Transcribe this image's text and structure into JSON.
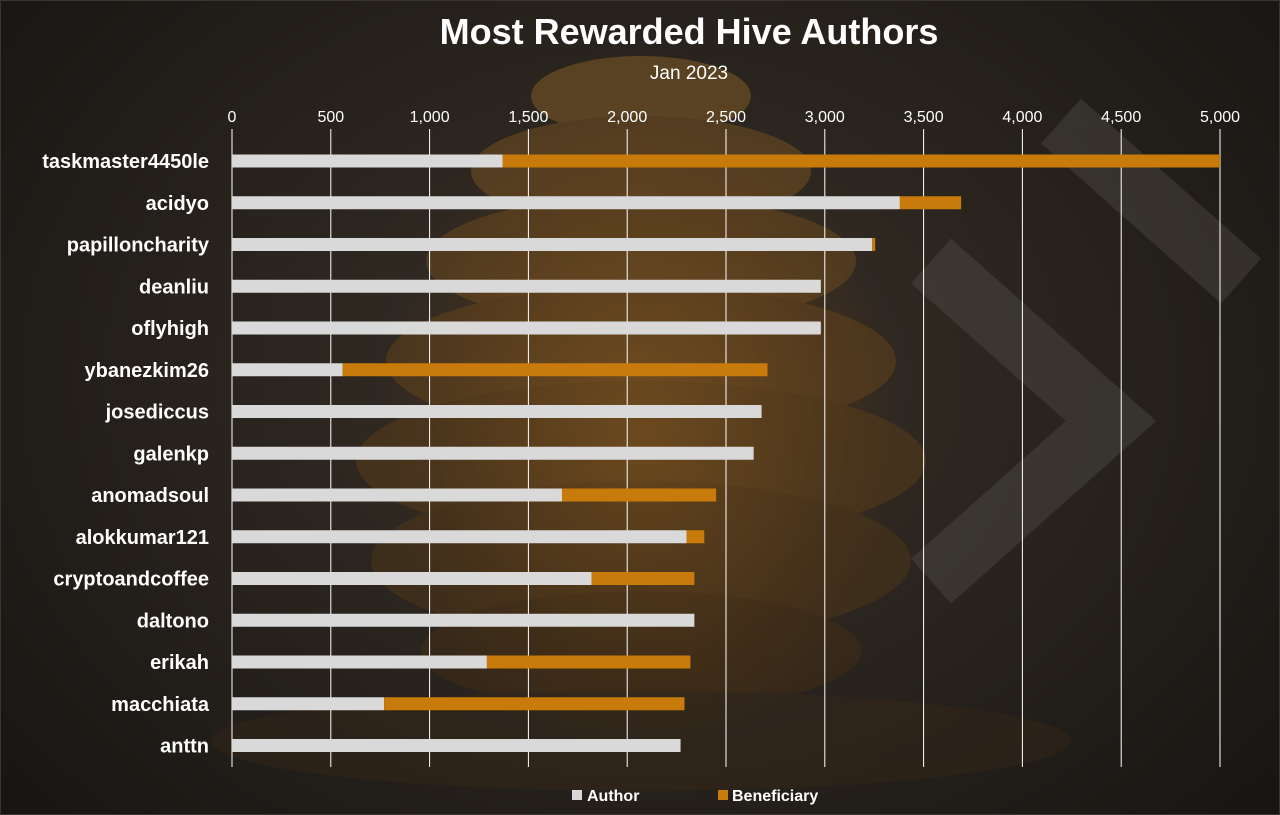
{
  "chart_data": {
    "type": "bar",
    "orientation": "horizontal",
    "stacked": true,
    "title": "Most Rewarded Hive Authors",
    "subtitle": "Jan 2023",
    "xlim": [
      0,
      5000
    ],
    "x_ticks": [
      "0",
      "500",
      "1,000",
      "1,500",
      "2,000",
      "2,500",
      "3,000",
      "3,500",
      "4,000",
      "4,500",
      "5,000"
    ],
    "x_tick_values": [
      0,
      500,
      1000,
      1500,
      2000,
      2500,
      3000,
      3500,
      4000,
      4500,
      5000
    ],
    "grid": true,
    "legend_position": "bottom",
    "categories": [
      "taskmaster4450le",
      "acidyo",
      "papilloncharity",
      "deanliu",
      "oflyhigh",
      "ybanezkim26",
      "josediccus",
      "galenkp",
      "anomadsoul",
      "alokkumar121",
      "cryptoandcoffee",
      "daltono",
      "erikah",
      "macchiata",
      "anttn"
    ],
    "series": [
      {
        "name": "Author",
        "color": "#d9d9d9",
        "values": [
          1370,
          3380,
          3240,
          2980,
          2980,
          560,
          2680,
          2640,
          1670,
          2300,
          1820,
          2340,
          1290,
          770,
          2270
        ]
      },
      {
        "name": "Beneficiary",
        "color": "#c87a0a",
        "values": [
          3630,
          310,
          15,
          0,
          0,
          2150,
          0,
          0,
          780,
          90,
          520,
          0,
          1030,
          1520,
          0
        ]
      }
    ]
  }
}
